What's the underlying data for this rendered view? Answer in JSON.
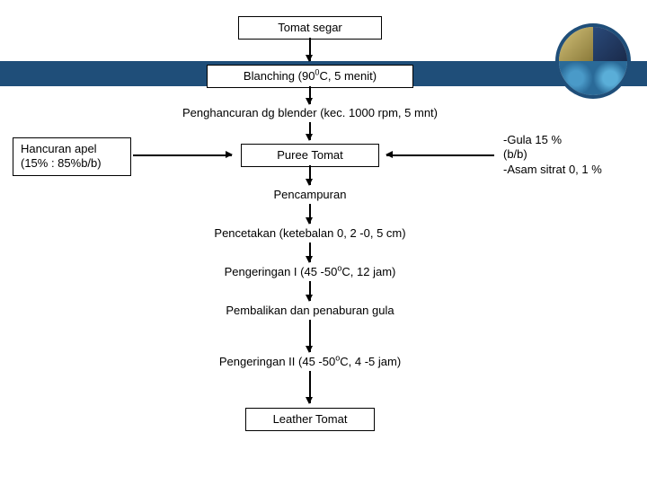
{
  "boxes": {
    "tomat_segar": "Tomat segar",
    "blanching": "Blanching (90<sup>0</sup>C, 5 menit)",
    "hancuran_apel": "Hancuran  apel<br>(15% : 85%b/b)",
    "puree": "Puree Tomat",
    "leather": "Leather Tomat"
  },
  "labels": {
    "penghancuran": "Penghancuran dg blender (kec. 1000 rpm, 5 mnt)",
    "gula_asam": "-Gula   15   %<br>(b/b)<br>-Asam sitrat 0, 1 %",
    "pencampuran": "Pencampuran",
    "pencetakan": "Pencetakan (ketebalan 0, 2 -0, 5 cm)",
    "pengeringan1": "Pengeringan I (45 -50<sup>o</sup>C, 12 jam)",
    "pembalikan": "Pembalikan dan penaburan gula",
    "pengeringan2": "Pengeringan II (45 -50<sup>o</sup>C, 4 -5 jam)",
    "blank1": "",
    "blank2": ""
  },
  "colors": {
    "header_band": "#1f4e79",
    "box_border": "#000000",
    "text": "#000000",
    "background": "#ffffff"
  }
}
